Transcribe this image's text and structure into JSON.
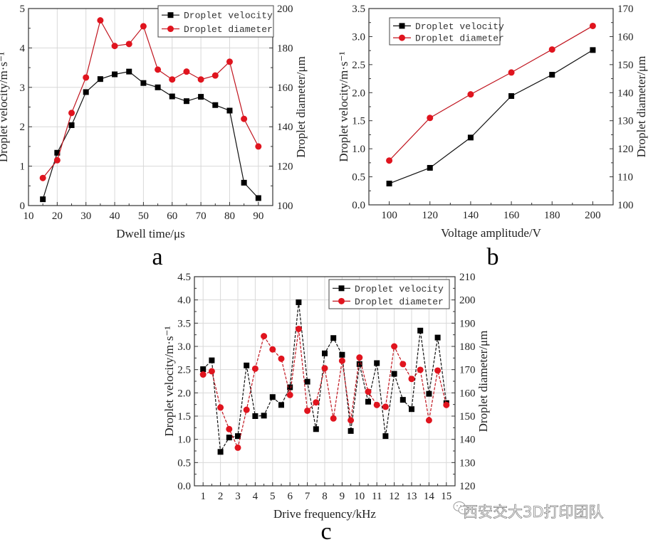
{
  "figure": {
    "watermark": "西安交大3D打印团队",
    "watermark_icon": "wechat-icon",
    "colors": {
      "velocity": "#000000",
      "diameter": "#e0141e",
      "grid": "#d8d8d8",
      "axis": "#000000"
    }
  },
  "chart_data": [
    {
      "id": "a",
      "type": "line",
      "caption": "a",
      "xlabel": "Dwell time/μs",
      "ylabel": "Droplet velocity/m·s⁻¹",
      "y2label": "Droplet diameter/μm",
      "xlim": [
        10,
        95
      ],
      "ylim": [
        0,
        5
      ],
      "y2lim": [
        100,
        200
      ],
      "xticks": [
        10,
        20,
        30,
        40,
        50,
        60,
        70,
        80,
        90
      ],
      "yticks": [
        0,
        1,
        2,
        3,
        4,
        5
      ],
      "y2ticks": [
        100,
        120,
        140,
        160,
        180,
        200
      ],
      "grid": true,
      "legend": {
        "position": "top-right",
        "entries": [
          "Droplet velocity",
          "Droplet diameter"
        ]
      },
      "x": [
        15,
        20,
        25,
        30,
        35,
        40,
        45,
        50,
        55,
        60,
        65,
        70,
        75,
        80,
        85,
        90
      ],
      "series": [
        {
          "name": "Droplet velocity",
          "axis": "left",
          "marker": "square",
          "values": [
            0.16,
            1.34,
            2.04,
            2.88,
            3.21,
            3.33,
            3.4,
            3.11,
            3.0,
            2.77,
            2.65,
            2.76,
            2.55,
            2.41,
            0.58,
            0.19
          ]
        },
        {
          "name": "Droplet diameter",
          "axis": "right",
          "marker": "circle",
          "values": [
            114,
            123,
            147,
            165,
            194,
            181,
            182,
            191,
            169,
            164,
            168,
            164,
            166,
            173,
            144,
            130
          ]
        }
      ]
    },
    {
      "id": "b",
      "type": "line",
      "caption": "b",
      "xlabel": "Voltage amplitude/V",
      "ylabel": "Droplet velocity/m·s⁻¹",
      "y2label": "Droplet diameter/μm",
      "xlim": [
        90,
        210
      ],
      "ylim": [
        0,
        3.5
      ],
      "y2lim": [
        100,
        170
      ],
      "xticks": [
        100,
        120,
        140,
        160,
        180,
        200
      ],
      "yticks": [
        "0.0",
        "0.5",
        "1.0",
        "1.5",
        "2.0",
        "2.5",
        "3.0",
        "3.5"
      ],
      "y2ticks": [
        100,
        110,
        120,
        130,
        140,
        150,
        160,
        170
      ],
      "grid": false,
      "legend": {
        "position": "top-left",
        "entries": [
          "Droplet velocity",
          "Droplet diameter"
        ]
      },
      "x": [
        100,
        120,
        140,
        160,
        180,
        200
      ],
      "series": [
        {
          "name": "Droplet velocity",
          "axis": "left",
          "marker": "square",
          "values": [
            0.38,
            0.66,
            1.2,
            1.94,
            2.32,
            2.76
          ]
        },
        {
          "name": "Droplet diameter",
          "axis": "right",
          "marker": "circle",
          "values": [
            115.8,
            131.0,
            139.4,
            147.2,
            155.4,
            163.8
          ]
        }
      ]
    },
    {
      "id": "c",
      "type": "line",
      "caption": "c",
      "xlabel": "Drive frequency/kHz",
      "ylabel": "Droplet velocity/m·s⁻¹",
      "y2label": "Droplet diameter/μm",
      "xlim": [
        0.5,
        15.5
      ],
      "ylim": [
        0,
        4.5
      ],
      "y2lim": [
        120,
        210
      ],
      "xticks": [
        1,
        2,
        3,
        4,
        5,
        6,
        7,
        8,
        9,
        10,
        11,
        12,
        13,
        14,
        15
      ],
      "yticks": [
        "0.0",
        "0.5",
        "1.0",
        "1.5",
        "2.0",
        "2.5",
        "3.0",
        "3.5",
        "4.0",
        "4.5"
      ],
      "y2ticks": [
        120,
        130,
        140,
        150,
        160,
        170,
        180,
        190,
        200,
        210
      ],
      "grid": true,
      "legend": {
        "position": "top-right",
        "entries": [
          "Droplet velocity",
          "Droplet diameter"
        ]
      },
      "x": [
        1,
        1.5,
        2,
        2.5,
        3,
        3.5,
        4,
        4.5,
        5,
        5.5,
        6,
        6.5,
        7,
        7.5,
        8,
        8.5,
        9,
        9.5,
        10,
        10.5,
        11,
        11.5,
        12,
        12.5,
        13,
        13.5,
        14,
        14.5,
        15
      ],
      "series": [
        {
          "name": "Droplet velocity",
          "axis": "left",
          "marker": "square",
          "values": [
            2.51,
            2.7,
            0.73,
            1.04,
            1.07,
            2.59,
            1.5,
            1.51,
            1.91,
            1.74,
            2.12,
            3.95,
            2.24,
            1.22,
            2.85,
            3.18,
            2.82,
            1.18,
            2.62,
            1.81,
            2.64,
            1.07,
            2.41,
            1.85,
            1.65,
            3.34,
            1.98,
            3.19,
            1.78
          ]
        },
        {
          "name": "Droplet diameter",
          "axis": "right",
          "marker": "circle",
          "values": [
            167.9,
            169.3,
            153.7,
            144.4,
            136.4,
            152.7,
            170.4,
            184.4,
            178.7,
            174.7,
            159.1,
            187.5,
            152.3,
            155.9,
            170.6,
            149.0,
            173.8,
            148.2,
            175.2,
            160.5,
            154.8,
            154.0,
            180.0,
            172.4,
            166.0,
            169.9,
            148.2,
            169.6,
            154.8
          ]
        }
      ]
    }
  ]
}
